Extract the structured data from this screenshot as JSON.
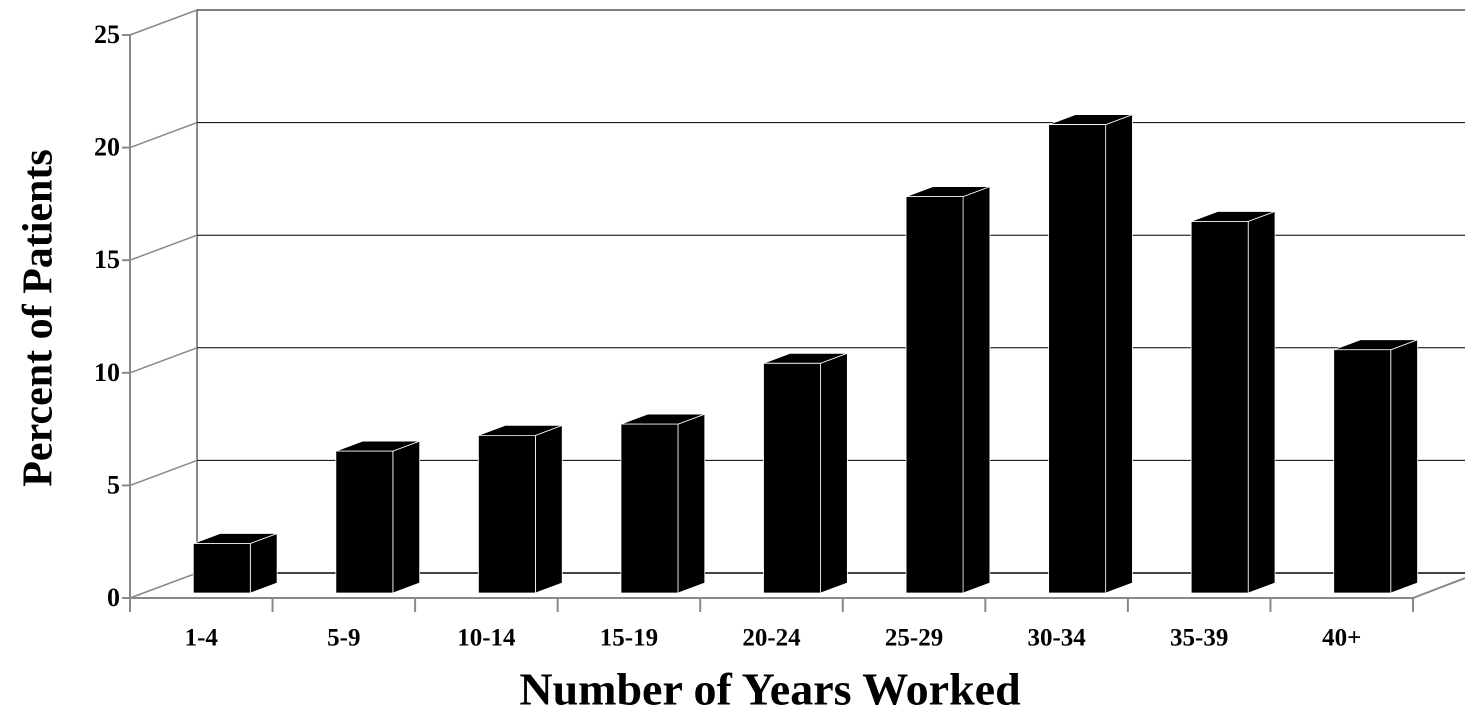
{
  "chart_data": {
    "type": "bar",
    "x_label": "Number of Years Worked",
    "y_label": "Percent of Patients",
    "categories": [
      "1-4",
      "5-9",
      "10-14",
      "15-19",
      "20-24",
      "25-29",
      "30-34",
      "35-39",
      "40+"
    ],
    "values": [
      2.2,
      6.3,
      7.0,
      7.5,
      10.2,
      17.6,
      20.8,
      16.5,
      10.8
    ],
    "color": "#000000",
    "ylim": [
      0,
      25
    ],
    "yticks": [
      0,
      5,
      10,
      15,
      20,
      25
    ],
    "grid": true
  }
}
